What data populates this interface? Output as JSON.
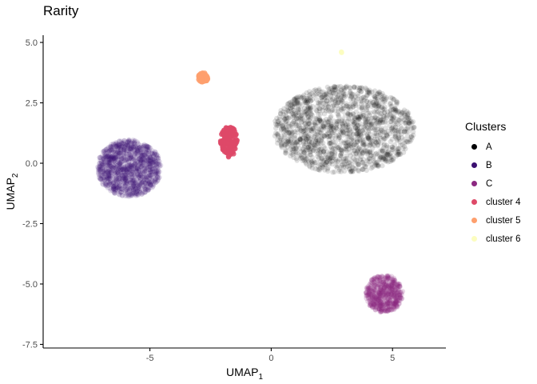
{
  "chart_data": {
    "type": "scatter",
    "title": "Rarity",
    "xlabel": {
      "base": "UMAP",
      "sub": "1"
    },
    "ylabel": {
      "base": "UMAP",
      "sub": "2"
    },
    "xlim": [
      -9.4,
      7.2
    ],
    "ylim": [
      -7.65,
      5.3
    ],
    "x_ticks": [
      -5,
      0,
      5
    ],
    "x_tick_labels": [
      "-5",
      "0",
      "5"
    ],
    "y_ticks": [
      5.0,
      2.5,
      0.0,
      -2.5,
      -5.0,
      -7.5
    ],
    "y_tick_labels": [
      "5.0",
      "2.5",
      "0.0",
      "-2.5",
      "-5.0",
      "-7.5"
    ],
    "grid": false,
    "legend": {
      "title": "Clusters",
      "placement": "right"
    },
    "series": [
      {
        "name": "A",
        "color": "#000004",
        "alpha": 0.12,
        "count": 1500,
        "center": [
          3.0,
          1.4
        ],
        "radius": [
          5.8,
          3.6
        ]
      },
      {
        "name": "B",
        "color": "#3b0f70",
        "alpha": 0.14,
        "count": 1100,
        "center": [
          -5.85,
          -0.2
        ],
        "radius": [
          2.65,
          2.35
        ]
      },
      {
        "name": "C",
        "color": "#8c2981",
        "alpha": 0.18,
        "count": 500,
        "center": [
          4.65,
          -5.4
        ],
        "radius": [
          1.55,
          1.55
        ]
      },
      {
        "name": "cluster 4",
        "color": "#de4968",
        "alpha": 0.85,
        "count": 140,
        "center": [
          -1.75,
          0.9
        ],
        "radius": [
          0.7,
          1.3
        ]
      },
      {
        "name": "cluster 5",
        "color": "#fe9f6d",
        "alpha": 0.85,
        "count": 70,
        "center": [
          -2.8,
          3.55
        ],
        "radius": [
          0.42,
          0.42
        ]
      },
      {
        "name": "cluster 6",
        "color": "#fcfdbf",
        "alpha": 0.9,
        "count": 2,
        "center": [
          2.9,
          4.6
        ],
        "radius": [
          0.05,
          0.05
        ]
      }
    ]
  }
}
